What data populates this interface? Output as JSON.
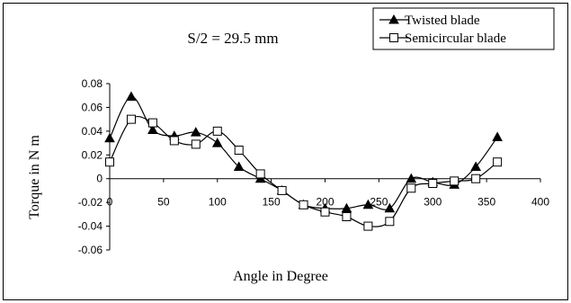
{
  "chart_data": {
    "type": "line",
    "annotation": "S/2 = 29.5 mm",
    "xlabel": "Angle in Degree",
    "ylabel": "Torque in N m",
    "xlim": [
      0,
      400
    ],
    "ylim": [
      -0.06,
      0.08
    ],
    "x_ticks": [
      "0",
      "50",
      "100",
      "150",
      "200",
      "250",
      "300",
      "350",
      "400"
    ],
    "y_ticks": [
      "0.08",
      "0.06",
      "0.04",
      "0.02",
      "0",
      "-0.02",
      "-0.04",
      "-0.06"
    ],
    "grid": false,
    "legend_position": "top-right",
    "x": [
      0,
      20,
      40,
      60,
      80,
      100,
      120,
      140,
      160,
      180,
      200,
      220,
      240,
      260,
      280,
      300,
      320,
      340,
      360
    ],
    "series": [
      {
        "name": "Twisted blade",
        "marker": "filled-triangle",
        "color": "#000000",
        "values": [
          0.034,
          0.069,
          0.041,
          0.036,
          0.039,
          0.03,
          0.01,
          0.0,
          -0.01,
          -0.022,
          -0.025,
          -0.025,
          -0.022,
          -0.025,
          0.0,
          -0.003,
          -0.005,
          0.01,
          0.035
        ]
      },
      {
        "name": "Semicircular blade",
        "marker": "open-square",
        "color": "#000000",
        "values": [
          0.014,
          0.05,
          0.047,
          0.032,
          0.029,
          0.04,
          0.024,
          0.004,
          -0.01,
          -0.022,
          -0.028,
          -0.032,
          -0.04,
          -0.036,
          -0.008,
          -0.004,
          -0.002,
          0.0,
          0.014
        ]
      }
    ]
  }
}
